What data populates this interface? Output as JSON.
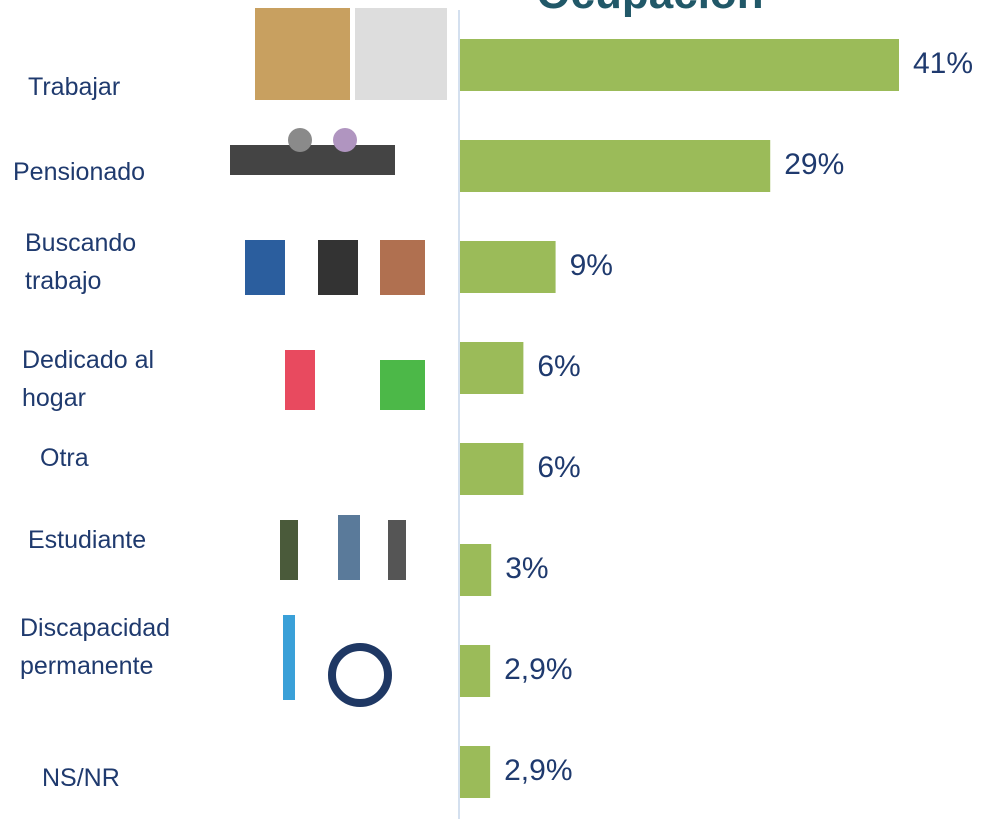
{
  "chart_data": {
    "type": "bar",
    "orientation": "horizontal",
    "title": "Ocupación",
    "categories": [
      "Trabajar",
      "Pensionado",
      "Buscando trabajo",
      "Dedicado al hogar",
      "Otra",
      "Estudiante",
      "Discapacidad permanente",
      "NS/NR"
    ],
    "values": [
      41,
      29,
      9,
      6,
      6,
      3,
      2.9,
      2.9
    ],
    "value_labels": [
      "41%",
      "29%",
      "9%",
      "6%",
      "6%",
      "3%",
      "2,9%",
      "2,9%"
    ],
    "color": "#9bbb59"
  }
}
